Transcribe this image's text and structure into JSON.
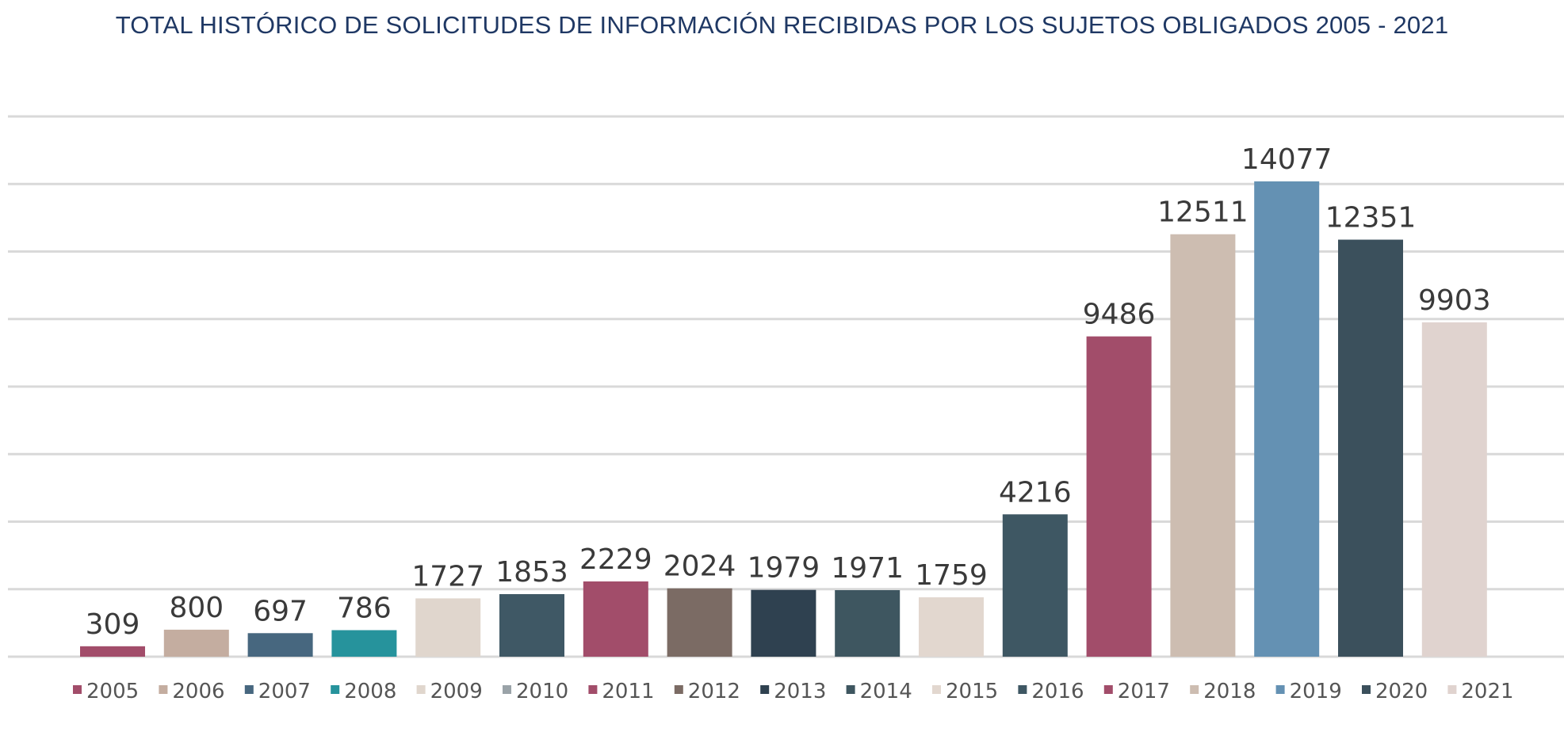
{
  "chart_data": {
    "type": "bar",
    "title": "TOTAL HISTÓRICO DE SOLICITUDES DE INFORMACIÓN RECIBIDAS POR LOS SUJETOS OBLIGADOS 2005 - 2021",
    "categories": [
      "2005",
      "2006",
      "2007",
      "2008",
      "2009",
      "2010",
      "2011",
      "2012",
      "2013",
      "2014",
      "2015",
      "2016",
      "2017",
      "2018",
      "2019",
      "2020",
      "2021"
    ],
    "values": [
      309,
      800,
      697,
      786,
      1727,
      1853,
      2229,
      2024,
      1979,
      1971,
      1759,
      4216,
      9486,
      12511,
      14077,
      12351,
      9903
    ],
    "colors": [
      "#a24d6a",
      "#c4ada0",
      "#47677f",
      "#26939c",
      "#e0d6cd",
      "#3f5865",
      "#a24d6a",
      "#7b6b64",
      "#2f4150",
      "#3e5660",
      "#e2d7cf",
      "#3e5763",
      "#a24d6a",
      "#cdbdb1",
      "#6491b3",
      "#3b505c",
      "#e0d3cf"
    ],
    "legend_colors": [
      "#a24d6a",
      "#c4ada0",
      "#47677f",
      "#26939c",
      "#e0d6cd",
      "#9aa3a8",
      "#a24d6a",
      "#7b6b64",
      "#2f4150",
      "#3e5660",
      "#e2d7cf",
      "#3e5763",
      "#a24d6a",
      "#cdbdb1",
      "#6491b3",
      "#3b505c",
      "#e0d3cf"
    ],
    "ylim": [
      0,
      16000
    ],
    "grid": true,
    "gridline_color": "#d9d9d9",
    "legend_position": "bottom",
    "xlabel": "",
    "ylabel": ""
  }
}
